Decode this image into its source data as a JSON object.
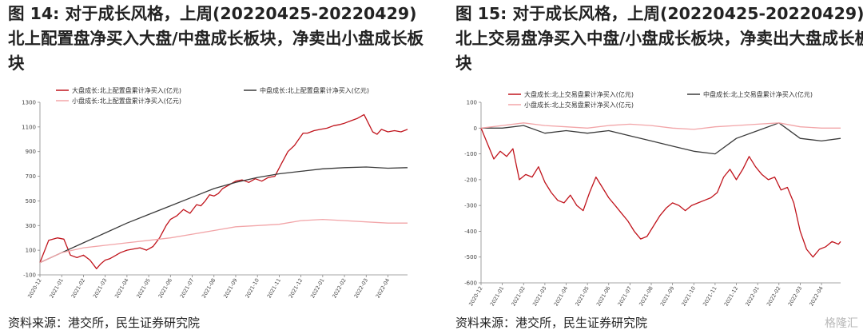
{
  "figures": [
    {
      "title": "图 14: 对于成长风格，上周(20220425-20220429)北上配置盘净买入大盘/中盘成长板块，净卖出小盘成长板块",
      "source": "资料来源：港交所，民生证券研究院"
    },
    {
      "title": "图 15: 对于成长风格，上周(20220425-20220429)北上交易盘净买入中盘/小盘成长板块，净卖出大盘成长板块",
      "source": "资料来源：港交所，民生证券研究院"
    }
  ],
  "watermark": "格隆汇",
  "chart_data": [
    {
      "type": "line",
      "title": "",
      "xlabel": "",
      "ylabel": "",
      "ylim": [
        -100,
        1300
      ],
      "yticks": [
        -100,
        100,
        300,
        500,
        700,
        900,
        1100,
        1300
      ],
      "x_tick_labels": [
        "2020-12",
        "2021-01",
        "2021-02",
        "2021-03",
        "2021-04",
        "2021-05",
        "2021-06",
        "2021-07",
        "2021-08",
        "2021-09",
        "2021-10",
        "2021-11",
        "2021-12",
        "2022-01",
        "2022-02",
        "2022-03",
        "2022-04"
      ],
      "xlim": [
        0,
        16.9
      ],
      "grid": false,
      "legend_position": "top",
      "series": [
        {
          "name": "大盘成长:北上配置盘累计净买入(亿元)",
          "color": "#c0141c",
          "x": [
            0,
            0.4,
            0.8,
            1.1,
            1.4,
            1.7,
            2.0,
            2.3,
            2.6,
            2.8,
            3.0,
            3.2,
            3.4,
            3.7,
            4.0,
            4.3,
            4.6,
            4.9,
            5.2,
            5.5,
            5.8,
            6.0,
            6.3,
            6.6,
            6.9,
            7.2,
            7.4,
            7.6,
            7.8,
            8.0,
            8.2,
            8.4,
            8.6,
            8.8,
            9.0,
            9.3,
            9.6,
            9.9,
            10.2,
            10.5,
            10.8,
            11.1,
            11.4,
            11.7,
            11.9,
            12.1,
            12.3,
            12.6,
            12.9,
            13.2,
            13.5,
            13.8,
            14.0,
            14.3,
            14.6,
            14.9,
            15.1,
            15.3,
            15.5,
            15.7,
            16.0,
            16.3,
            16.6,
            16.9
          ],
          "y": [
            0,
            180,
            200,
            190,
            60,
            40,
            60,
            20,
            -50,
            -10,
            20,
            30,
            50,
            80,
            100,
            110,
            120,
            100,
            130,
            200,
            300,
            350,
            380,
            430,
            400,
            470,
            460,
            500,
            550,
            540,
            560,
            600,
            620,
            640,
            660,
            670,
            650,
            680,
            660,
            690,
            700,
            800,
            900,
            950,
            1000,
            1050,
            1050,
            1070,
            1080,
            1090,
            1110,
            1120,
            1130,
            1150,
            1170,
            1200,
            1130,
            1060,
            1040,
            1080,
            1060,
            1070,
            1060,
            1080
          ]
        },
        {
          "name": "中盘成长:北上配置盘累计净买入(亿元)",
          "color": "#3a3a3a",
          "x": [
            0,
            1,
            2,
            3,
            4,
            5,
            6,
            7,
            8,
            9,
            10,
            11,
            12,
            13,
            14,
            15,
            16,
            16.9
          ],
          "y": [
            0,
            80,
            160,
            240,
            320,
            390,
            460,
            530,
            600,
            650,
            690,
            720,
            740,
            760,
            770,
            775,
            765,
            770
          ]
        },
        {
          "name": "小盘成长:北上配置盘累计净买入(亿元)",
          "color": "#f2a5a8",
          "x": [
            0,
            1,
            2,
            3,
            4,
            5,
            6,
            7,
            8,
            9,
            10,
            11,
            12,
            13,
            14,
            15,
            16,
            16.9
          ],
          "y": [
            0,
            80,
            120,
            140,
            160,
            180,
            200,
            230,
            260,
            290,
            300,
            310,
            340,
            350,
            340,
            330,
            320,
            320
          ]
        }
      ]
    },
    {
      "type": "line",
      "title": "",
      "xlabel": "",
      "ylabel": "",
      "ylim": [
        -600,
        100
      ],
      "yticks": [
        -600,
        -500,
        -400,
        -300,
        -200,
        -100,
        0,
        100
      ],
      "x_tick_labels": [
        "2020-12",
        "2021-01",
        "2021-02",
        "2021-03",
        "2021-04",
        "2021-05",
        "2021-06",
        "2021-07",
        "2021-08",
        "2021-09",
        "2021-10",
        "2021-11",
        "2021-12",
        "2022-01",
        "2022-02",
        "2022-03",
        "2022-04"
      ],
      "xlim": [
        0,
        16.9
      ],
      "grid": false,
      "legend_position": "top",
      "series": [
        {
          "name": "大盘成长:北上交易盘累计净买入(亿元)",
          "color": "#c0141c",
          "x": [
            0,
            0.3,
            0.6,
            0.9,
            1.2,
            1.5,
            1.8,
            2.1,
            2.4,
            2.7,
            3.0,
            3.3,
            3.6,
            3.9,
            4.2,
            4.5,
            4.8,
            5.1,
            5.4,
            5.7,
            6.0,
            6.3,
            6.6,
            6.9,
            7.2,
            7.5,
            7.8,
            8.1,
            8.4,
            8.7,
            9.0,
            9.3,
            9.6,
            9.9,
            10.2,
            10.5,
            10.8,
            11.1,
            11.4,
            11.7,
            12.0,
            12.3,
            12.6,
            12.9,
            13.2,
            13.5,
            13.8,
            14.1,
            14.4,
            14.7,
            15.0,
            15.3,
            15.6,
            15.9,
            16.2,
            16.5,
            16.8,
            16.9
          ],
          "y": [
            0,
            -60,
            -120,
            -90,
            -110,
            -80,
            -200,
            -180,
            -190,
            -150,
            -210,
            -250,
            -280,
            -290,
            -260,
            -300,
            -320,
            -250,
            -190,
            -230,
            -270,
            -300,
            -330,
            -360,
            -400,
            -430,
            -420,
            -380,
            -340,
            -310,
            -290,
            -300,
            -320,
            -300,
            -290,
            -280,
            -270,
            -250,
            -190,
            -160,
            -200,
            -160,
            -110,
            -150,
            -180,
            -200,
            -190,
            -240,
            -230,
            -290,
            -400,
            -470,
            -500,
            -470,
            -460,
            -440,
            -450,
            -440
          ]
        },
        {
          "name": "中盘成长:北上交易盘累计净买入(亿元)",
          "color": "#3a3a3a",
          "x": [
            0,
            1,
            2,
            3,
            4,
            5,
            6,
            7,
            8,
            9,
            10,
            11,
            12,
            13,
            14,
            15,
            16,
            16.9
          ],
          "y": [
            0,
            0,
            10,
            -20,
            -10,
            -20,
            -10,
            -30,
            -50,
            -70,
            -90,
            -100,
            -40,
            -10,
            20,
            -40,
            -50,
            -40
          ]
        },
        {
          "name": "小盘成长:北上交易盘累计净买入(亿元)",
          "color": "#f2a5a8",
          "x": [
            0,
            1,
            2,
            3,
            4,
            5,
            6,
            7,
            8,
            9,
            10,
            11,
            12,
            13,
            14,
            15,
            16,
            16.9
          ],
          "y": [
            0,
            10,
            20,
            10,
            5,
            0,
            10,
            15,
            10,
            0,
            -5,
            5,
            10,
            15,
            20,
            5,
            0,
            0
          ]
        }
      ]
    }
  ]
}
